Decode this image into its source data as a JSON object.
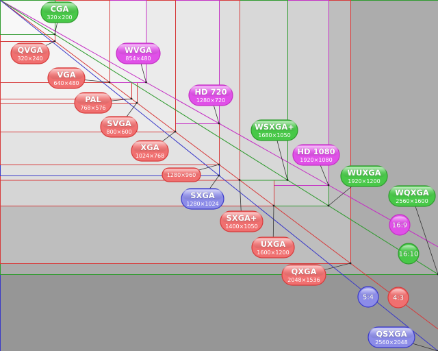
{
  "resolutions": [
    {
      "id": "cga",
      "name": "CGA",
      "size": "320×200",
      "width": 320,
      "height": 200,
      "color": "green"
    },
    {
      "id": "qvga",
      "name": "QVGA",
      "size": "320×240",
      "width": 320,
      "height": 240,
      "color": "red"
    },
    {
      "id": "vga",
      "name": "VGA",
      "size": "640×480",
      "width": 640,
      "height": 480,
      "color": "red"
    },
    {
      "id": "pal",
      "name": "PAL",
      "size": "768×576",
      "width": 768,
      "height": 576,
      "color": "red"
    },
    {
      "id": "svga",
      "name": "SVGA",
      "size": "800×600",
      "width": 800,
      "height": 600,
      "color": "red"
    },
    {
      "id": "wvga",
      "name": "WVGA",
      "size": "854×480",
      "width": 854,
      "height": 480,
      "color": "magenta"
    },
    {
      "id": "xga",
      "name": "XGA",
      "size": "1024×768",
      "width": 1024,
      "height": 768,
      "color": "red"
    },
    {
      "id": "hd720",
      "name": "HD 720",
      "size": "1280×720",
      "width": 1280,
      "height": 720,
      "color": "magenta"
    },
    {
      "id": "r1280x960",
      "name": "",
      "size": "1280×960",
      "width": 1280,
      "height": 960,
      "color": "red"
    },
    {
      "id": "sxga",
      "name": "SXGA",
      "size": "1280×1024",
      "width": 1280,
      "height": 1024,
      "color": "blue"
    },
    {
      "id": "sxgaplus",
      "name": "SXGA+",
      "size": "1400×1050",
      "width": 1400,
      "height": 1050,
      "color": "red"
    },
    {
      "id": "wsxgaplus",
      "name": "WSXGA+",
      "size": "1680×1050",
      "width": 1680,
      "height": 1050,
      "color": "green"
    },
    {
      "id": "uxga",
      "name": "UXGA",
      "size": "1600×1200",
      "width": 1600,
      "height": 1200,
      "color": "red"
    },
    {
      "id": "hd1080",
      "name": "HD 1080",
      "size": "1920×1080",
      "width": 1920,
      "height": 1080,
      "color": "magenta"
    },
    {
      "id": "wuxga",
      "name": "WUXGA",
      "size": "1920×1200",
      "width": 1920,
      "height": 1200,
      "color": "green"
    },
    {
      "id": "qxga",
      "name": "QXGA",
      "size": "2048×1536",
      "width": 2048,
      "height": 1536,
      "color": "red"
    },
    {
      "id": "wqxga",
      "name": "WQXGA",
      "size": "2560×1600",
      "width": 2560,
      "height": 1600,
      "color": "green"
    },
    {
      "id": "qsxga",
      "name": "QSXGA",
      "size": "2560×2048",
      "width": 2560,
      "height": 2048,
      "color": "blue"
    }
  ],
  "aspect_ratios": [
    {
      "id": "r16x9",
      "label": "16:9",
      "color": "magenta"
    },
    {
      "id": "r16x10",
      "label": "16:10",
      "color": "green"
    },
    {
      "id": "r5x4",
      "label": "5:4",
      "color": "blue"
    },
    {
      "id": "r4x3",
      "label": "4:3",
      "color": "red"
    }
  ],
  "colors": {
    "red": "#d63a3a",
    "green": "#2e9a2e",
    "magenta": "#c430c4",
    "blue": "#3838c8",
    "red_fill": "#f07070",
    "green_fill": "#48c848",
    "magenta_fill": "#e050e8",
    "blue_fill": "#8c8ce8"
  }
}
